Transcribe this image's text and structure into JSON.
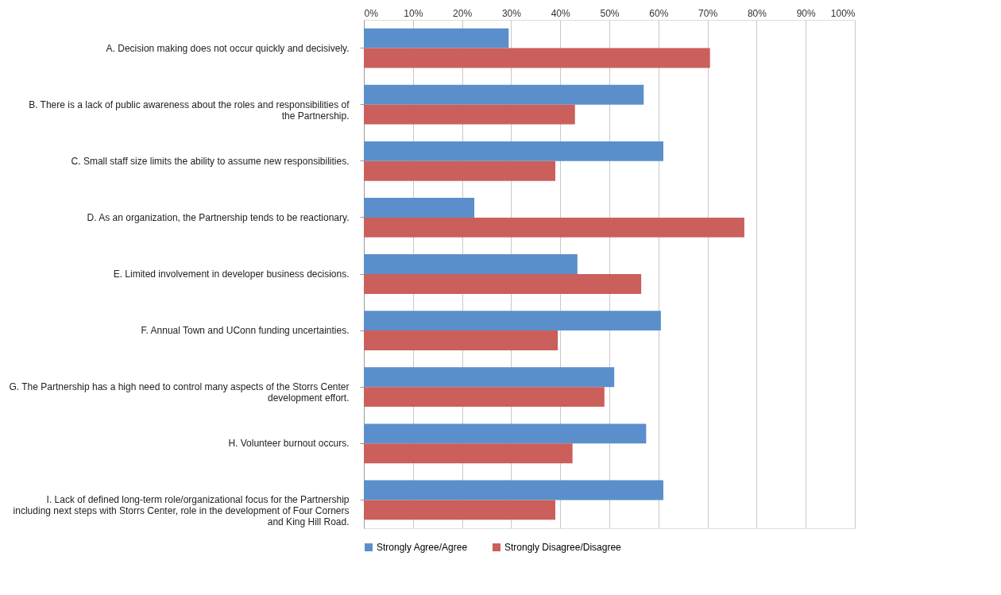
{
  "chart_data": {
    "type": "bar",
    "orientation": "horizontal",
    "categories": [
      "A. Decision making does not occur quickly and decisively.",
      "B. There is a lack of public awareness about the roles and responsibilities of the Partnership.",
      "C. Small staff size limits the ability to assume new responsibilities.",
      "D. As an organization, the Partnership tends to be reactionary.",
      "E. Limited involvement in developer business decisions.",
      "F. Annual Town and UConn funding uncertainties.",
      "G. The Partnership has a high need to control many aspects of the Storrs Center development effort.",
      "H. Volunteer burnout occurs.",
      "I. Lack of defined long-term role/organizational focus for the Partnership including next steps with Storrs Center, role in the development of Four Corners and King Hill Road."
    ],
    "series": [
      {
        "name": "Strongly Agree/Agree",
        "color": "#5b8fcb",
        "values": [
          29.5,
          57,
          61,
          22.5,
          43.5,
          60.5,
          51,
          57.5,
          61
        ]
      },
      {
        "name": "Strongly Disagree/Disagree",
        "color": "#cb5f5b",
        "values": [
          70.5,
          43,
          39,
          77.5,
          56.5,
          39.5,
          49,
          42.5,
          39
        ]
      }
    ],
    "xlim": [
      0,
      100
    ],
    "xticks": [
      {
        "value": 0,
        "label": "0%"
      },
      {
        "value": 10,
        "label": "10%"
      },
      {
        "value": 20,
        "label": "20%"
      },
      {
        "value": 30,
        "label": "30%"
      },
      {
        "value": 40,
        "label": "40%"
      },
      {
        "value": 50,
        "label": "50%"
      },
      {
        "value": 60,
        "label": "60%"
      },
      {
        "value": 70,
        "label": "70%"
      },
      {
        "value": 80,
        "label": "80%"
      },
      {
        "value": 90,
        "label": "90%"
      },
      {
        "value": 100,
        "label": "100%"
      }
    ],
    "grid": "x",
    "legend": "bottom"
  }
}
